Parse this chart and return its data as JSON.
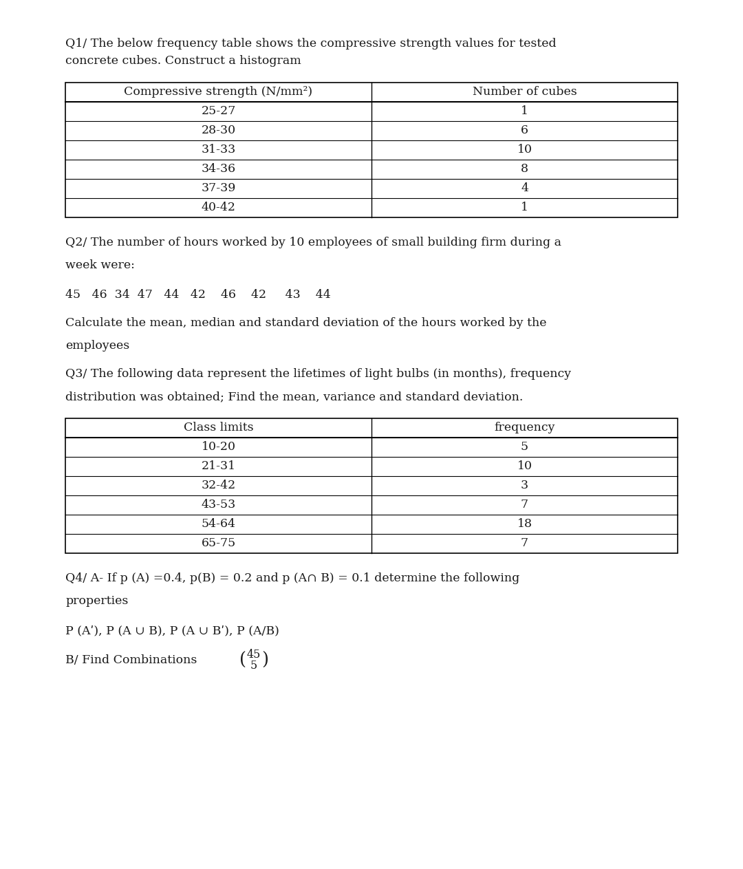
{
  "bg_color": "#ffffff",
  "page_bg": "#ffffff",
  "text_color": "#1a1a1a",
  "font_size_body": 12.5,
  "q1_text_line1": "Q1/ The below frequency table shows the compressive strength values for tested",
  "q1_text_line2": "concrete cubes. Construct a histogram",
  "q1_col1_header": "Compressive strength (N/mm²)",
  "q1_col2_header": "Number of cubes",
  "q1_rows": [
    [
      "25-27",
      "1"
    ],
    [
      "28-30",
      "6"
    ],
    [
      "31-33",
      "10"
    ],
    [
      "34-36",
      "8"
    ],
    [
      "37-39",
      "4"
    ],
    [
      "40-42",
      "1"
    ]
  ],
  "q2_text_line1": "Q2/ The number of hours worked by 10 employees of small building firm during a",
  "q2_text_line2": "week were:",
  "q2_data": "45   46  34  47   44   42    46    42     43    44",
  "q2_calc": "Calculate the mean, median and standard deviation of the hours worked by the",
  "q2_calc2": "employees",
  "q3_text_line1": "Q3/ The following data represent the lifetimes of light bulbs (in months), frequency",
  "q3_text_line2": "distribution was obtained; Find the mean, variance and standard deviation.",
  "q3_col1_header": "Class limits",
  "q3_col2_header": "frequency",
  "q3_rows": [
    [
      "10-20",
      "5"
    ],
    [
      "21-31",
      "10"
    ],
    [
      "32-42",
      "3"
    ],
    [
      "43-53",
      "7"
    ],
    [
      "54-64",
      "18"
    ],
    [
      "65-75",
      "7"
    ]
  ],
  "q4_text_line1": "Q4/ A- If p (A) =0.4, p(B) = 0.2 and p (A∩ B) = 0.1 determine the following",
  "q4_text_line2": "properties",
  "q4_props": "P (Aʹ), P (A ∪ B), P (A ∪ Bʹ), P (A/B)",
  "q4_comb_prefix": "B/ Find Combinations ",
  "q4_comb_top": "45",
  "q4_comb_bot": "5"
}
